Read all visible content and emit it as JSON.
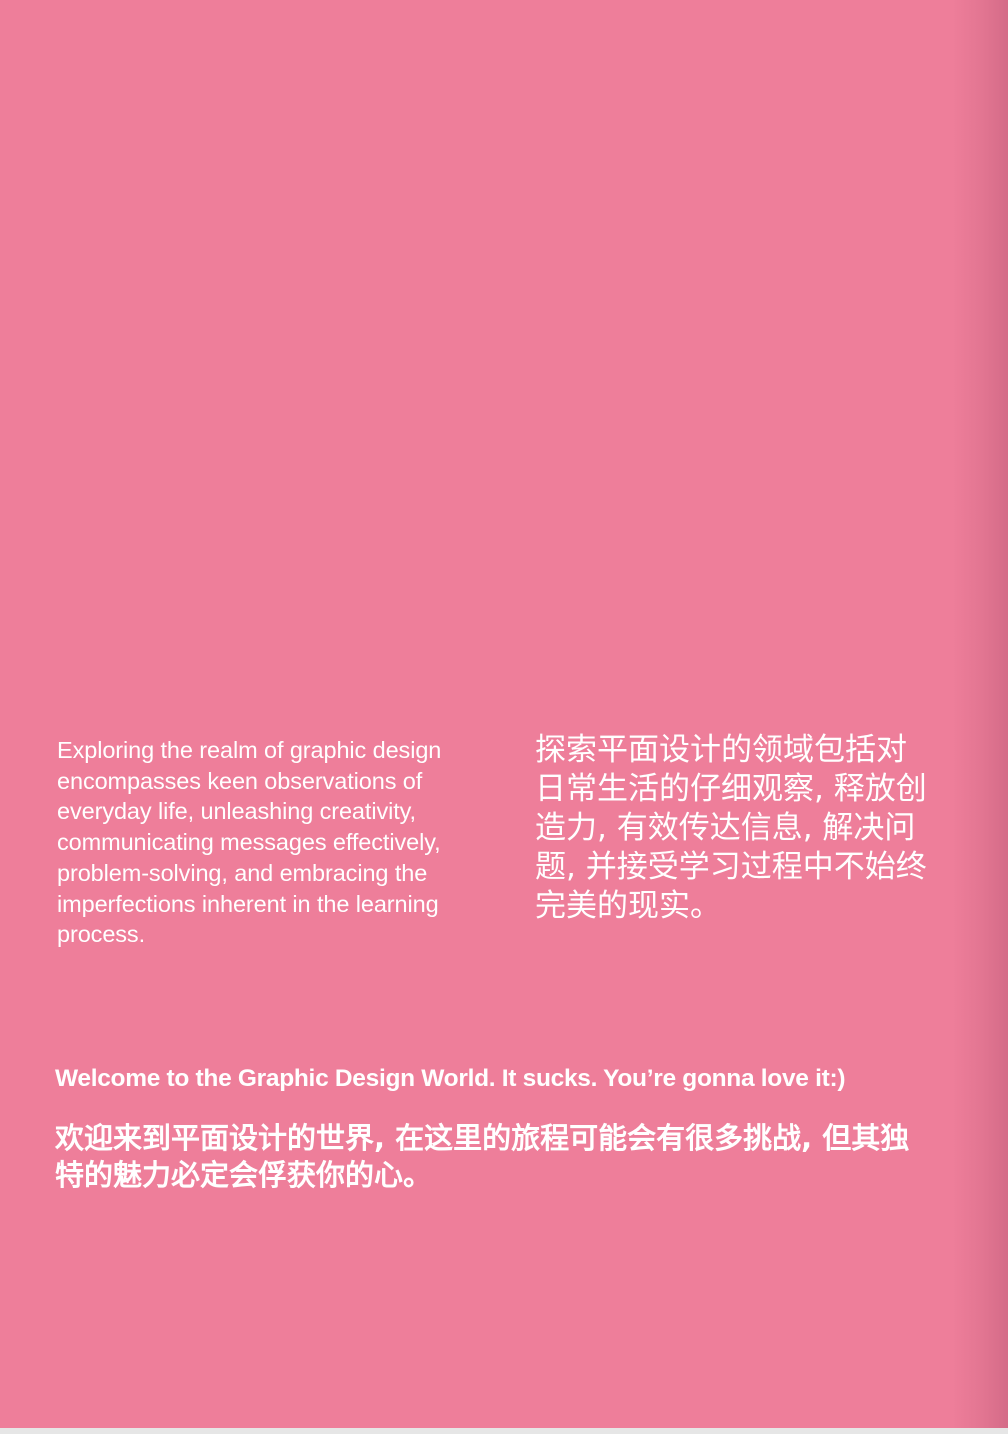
{
  "colors": {
    "page_background": "#ee7e9a",
    "text": "#ffffff"
  },
  "intro": {
    "english": "Exploring the realm of graphic design encompasses keen observations of everyday life, unleashing creativity, communicating messages effectively, problem-solving, and embracing the imperfections inherent in the learning process.",
    "chinese": "探索平面设计的领域包括对日常生活的仔细观察, 释放创造力, 有效传达信息, 解决问题, 并接受学习过程中不始终完美的现实。"
  },
  "welcome": {
    "english": "Welcome to the Graphic Design World. It sucks. You’re gonna love it:)",
    "chinese": "欢迎来到平面设计的世界, 在这里的旅程可能会有很多挑战, 但其独特的魅力必定会俘获你的心。"
  }
}
